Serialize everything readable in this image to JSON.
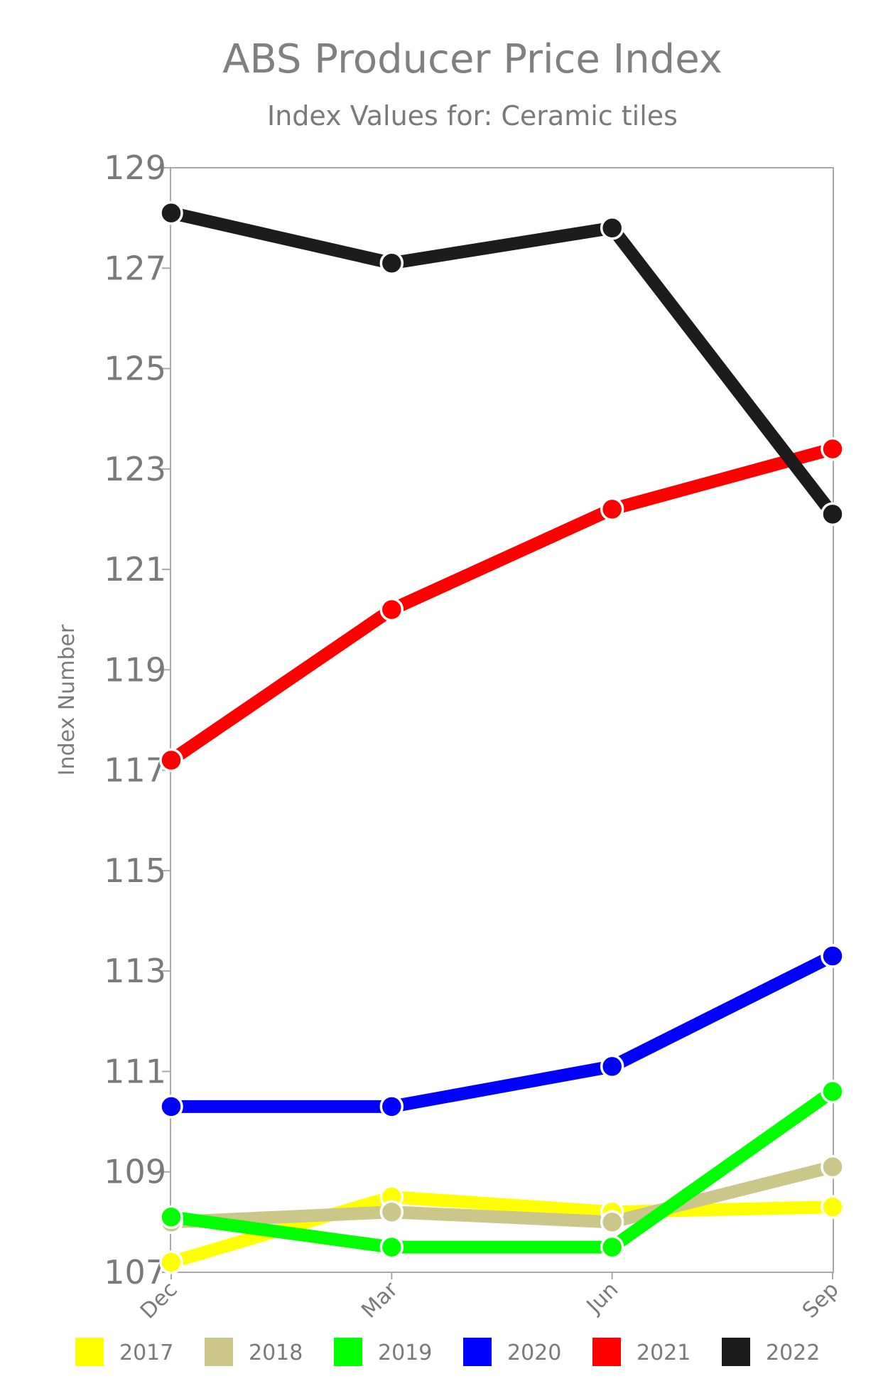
{
  "chart_data": {
    "type": "line",
    "title": "ABS Producer Price Index",
    "subtitle": "Index Values for: Ceramic tiles",
    "ylabel": "Index Number",
    "xlabel": "",
    "categories": [
      "Dec",
      "Mar",
      "Jun",
      "Sep"
    ],
    "ylim": [
      107,
      129
    ],
    "yticks": [
      107,
      109,
      111,
      113,
      115,
      117,
      119,
      121,
      123,
      125,
      127,
      129
    ],
    "grid": false,
    "legend_position": "bottom",
    "series": [
      {
        "name": "2017",
        "color": "#ffff00",
        "values": [
          107.2,
          108.5,
          108.2,
          108.3
        ]
      },
      {
        "name": "2018",
        "color": "#cbc78a",
        "values": [
          108.0,
          108.2,
          108.0,
          109.1
        ]
      },
      {
        "name": "2019",
        "color": "#00ff00",
        "values": [
          108.1,
          107.5,
          107.5,
          110.6
        ]
      },
      {
        "name": "2020",
        "color": "#0000ff",
        "values": [
          110.3,
          110.3,
          111.1,
          113.3
        ]
      },
      {
        "name": "2021",
        "color": "#ff0000",
        "values": [
          117.2,
          120.2,
          122.2,
          123.4
        ]
      },
      {
        "name": "2022",
        "color": "#1c1c1c",
        "values": [
          128.1,
          127.1,
          127.8,
          122.1
        ]
      }
    ]
  }
}
